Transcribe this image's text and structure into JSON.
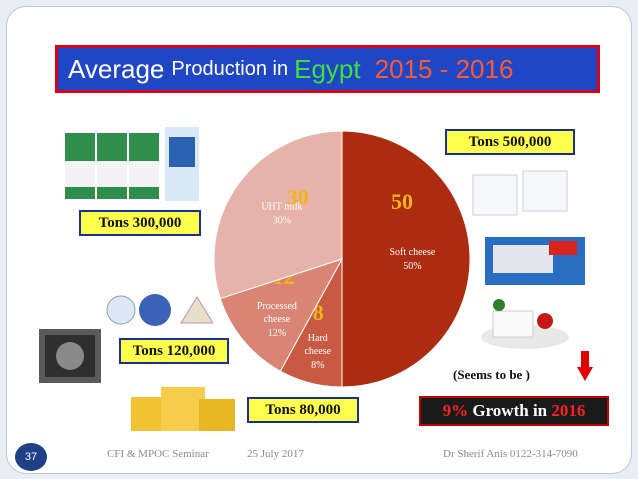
{
  "title": {
    "part1": "Average",
    "part2": "Production in",
    "part3": "Egypt",
    "part4": "2015 - 2016"
  },
  "labels": {
    "soft": "Tons 500,000",
    "uht": "Tons 300,000",
    "processed": "Tons 120,000",
    "hard": "Tons 80,000"
  },
  "seems": "(Seems  to be )",
  "growth": {
    "pct": "9%",
    "text": "Growth in",
    "year": "2016"
  },
  "footer": {
    "page": "37",
    "seminar": "CFI  &  MPOC  Seminar",
    "date": "25 July 2017",
    "author": "Dr  Sherif Anis   0122-314-7090"
  },
  "colors": {
    "soft": "#ab2c10",
    "hard": "#c85a43",
    "processed": "#d88575",
    "uht": "#e6b2aa",
    "title_bg": "#1f46c4",
    "label_bg": "#ffff4d",
    "number_text": "#f2b418"
  },
  "chart_data": {
    "type": "pie",
    "title": "",
    "slices": [
      {
        "name": "Soft cheese",
        "value": 50,
        "percent_label": "50%",
        "big_label": "50"
      },
      {
        "name": "Hard cheese",
        "value": 8,
        "percent_label": "8%",
        "big_label": "8"
      },
      {
        "name": "Processed cheese",
        "value": 12,
        "percent_label": "12%",
        "big_label": "12"
      },
      {
        "name": "UHT milk",
        "value": 30,
        "percent_label": "30%",
        "big_label": "30"
      }
    ]
  }
}
